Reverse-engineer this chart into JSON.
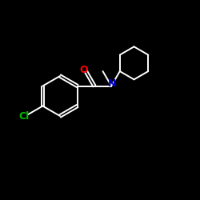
{
  "background_color": "#000000",
  "bond_color": "#ffffff",
  "atom_colors": {
    "O": "#ff0000",
    "N": "#0000cd",
    "Cl": "#00bb00"
  },
  "figsize": [
    2.5,
    2.5
  ],
  "dpi": 100,
  "bond_lw": 1.4
}
